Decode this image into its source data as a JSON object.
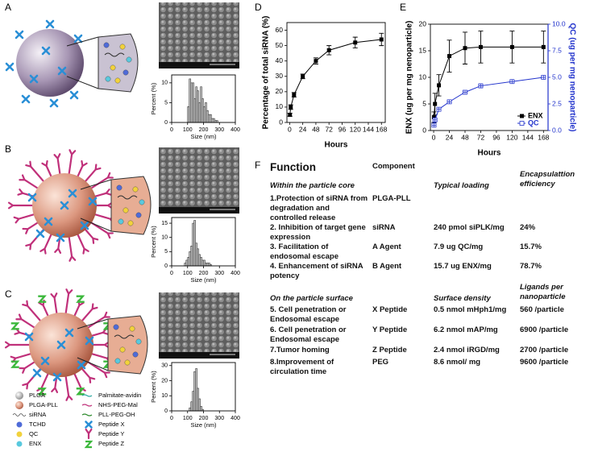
{
  "panel_labels": [
    "A",
    "B",
    "C",
    "D",
    "E",
    "F"
  ],
  "chart_data": [
    {
      "type": "histogram",
      "xlabel": "Size (nm)",
      "ylabel": "Percent (%)",
      "color": "#cccccc",
      "bins": [
        100,
        110,
        120,
        130,
        140,
        150,
        160,
        170,
        180,
        190,
        200,
        210,
        220,
        230,
        240,
        250,
        260,
        270,
        280,
        290
      ],
      "values": [
        4,
        11,
        10,
        10,
        6,
        9,
        8,
        5,
        9,
        6,
        4,
        5,
        3,
        2,
        2,
        1,
        1,
        0.5,
        0.5
      ],
      "xlim": [
        0,
        400
      ],
      "xticks": [
        0,
        100,
        200,
        300,
        400
      ],
      "ylim": [
        0,
        12
      ],
      "yticks": [
        0,
        5,
        10
      ]
    },
    {
      "type": "histogram",
      "xlabel": "Size (nm)",
      "ylabel": "Percent (%)",
      "color": "#cccccc",
      "bins": [
        80,
        90,
        100,
        110,
        120,
        130,
        140,
        150,
        160,
        170,
        180,
        190,
        200,
        210,
        220,
        230,
        240,
        250
      ],
      "values": [
        1,
        2,
        3,
        5,
        7,
        15,
        16,
        8,
        6,
        4,
        3,
        2,
        2,
        1,
        1,
        1,
        0.5
      ],
      "xlim": [
        0,
        400
      ],
      "xticks": [
        0,
        100,
        200,
        300,
        400
      ],
      "ylim": [
        0,
        17
      ],
      "yticks": [
        0,
        5,
        10,
        15
      ]
    },
    {
      "type": "histogram",
      "xlabel": "Size (nm)",
      "ylabel": "Percent (%)",
      "color": "#cccccc",
      "bins": [
        110,
        120,
        130,
        140,
        150,
        160,
        170,
        180,
        190,
        200
      ],
      "values": [
        2,
        6,
        13,
        26,
        28,
        15,
        8,
        3,
        1
      ],
      "xlim": [
        0,
        400
      ],
      "xticks": [
        0,
        100,
        200,
        300,
        400
      ],
      "ylim": [
        0,
        32
      ],
      "yticks": [
        0,
        10,
        20,
        30
      ]
    },
    {
      "type": "line",
      "xlabel": "Hours",
      "ylabel": "Percentage of total siRNA (%)",
      "color": "#000000",
      "x": [
        0.5,
        2,
        8,
        24,
        48,
        72,
        120,
        168
      ],
      "values": [
        5,
        10,
        18,
        30,
        40,
        47,
        52,
        54
      ],
      "errors": [
        1,
        1.5,
        1.5,
        1.5,
        2,
        3,
        3.5,
        4
      ],
      "xlim": [
        -5,
        175
      ],
      "xticks": [
        0,
        24,
        48,
        72,
        96,
        120,
        144,
        168
      ],
      "ylim": [
        0,
        65
      ],
      "yticks": [
        0,
        10,
        20,
        30,
        40,
        50,
        60
      ]
    },
    {
      "type": "line",
      "xlabel": "Hours",
      "ylabel": "ENX (ug per mg nenoparticle)",
      "y2label": "QC (ug per mg nenoparticle)",
      "x": [
        0.5,
        2,
        8,
        24,
        48,
        72,
        120,
        168
      ],
      "series": [
        {
          "name": "ENX",
          "color": "#000000",
          "values": [
            2.5,
            5,
            8.5,
            14,
            15.5,
            15.7,
            15.7,
            15.7
          ],
          "errors": [
            1,
            2,
            2,
            3,
            3,
            3,
            3,
            3
          ]
        },
        {
          "name": "QC",
          "color": "#2233cc",
          "axis": "y2",
          "values": [
            0.5,
            1,
            2,
            2.7,
            3.6,
            4.2,
            4.6,
            5.0
          ],
          "errors": [
            0.1,
            0.1,
            0.1,
            0.1,
            0.1,
            0.1,
            0.1,
            0.1
          ]
        }
      ],
      "xlim": [
        -5,
        175
      ],
      "xticks": [
        0,
        24,
        48,
        72,
        96,
        120,
        144,
        168
      ],
      "ylim": [
        0,
        20
      ],
      "yticks": [
        0,
        5,
        10,
        15,
        20
      ],
      "y2lim": [
        0,
        10
      ],
      "y2ticks": [
        {
          "value": 0,
          "label": "0.0"
        },
        {
          "value": 2.5,
          "label": "2.5"
        },
        {
          "value": 5,
          "label": "5.0"
        },
        {
          "value": 7.5,
          "label": "7.5"
        },
        {
          "value": 10,
          "label": "10.0"
        }
      ],
      "legend": "lower right"
    }
  ],
  "legend": {
    "items": [
      "PLGA",
      "PLGA-PLL",
      "siRNA",
      "TCHD",
      "QC",
      "ENX",
      "Palmitate-avidin",
      "NHS-PEG-Mal",
      "PLL-PEG-OH",
      "Peptide X",
      "Peptide Y",
      "Peptide Z"
    ]
  },
  "table": {
    "header": [
      "Function",
      "Component"
    ],
    "sections": [
      {
        "title": "Within the particle core",
        "columns": [
          "Typical loading",
          "Encapsulattion efficiency"
        ],
        "rows": [
          [
            "1.Protection of siRNA from degradation and controlled release",
            "PLGA-PLL"
          ],
          [
            "2. Inhibition of target gene expression",
            "siRNA",
            "240 pmol siPLK/mg",
            "24%"
          ],
          [
            "3. Facilitation of endosomal escape",
            "A Agent",
            "7.9 ug QC/mg",
            "15.7%"
          ],
          [
            "4. Enhancement of siRNA potency",
            "B Agent",
            "15.7 ug ENX/mg",
            "78.7%"
          ]
        ]
      },
      {
        "title": "On the particle surface",
        "columns": [
          "Surface density",
          "Ligands per nanoparticle"
        ],
        "rows": [
          [
            "5. Cell penetration or Endosomal escape",
            "X Peptide",
            "0.5 nmol mHph1/mg",
            "560 /particle"
          ],
          [
            "6. Cell penetration or Endosomal escape",
            "Y Peptide",
            "6.2 nmol mAP/mg",
            "6900 /particle"
          ],
          [
            "7.Tumor homing",
            "Z Peptide",
            "2.4 nmol iRGD/mg",
            "2700 /particle"
          ],
          [
            "8.Improvement of circulation time",
            "PEG",
            "8.6 nmol/ mg",
            "9600 /particle"
          ]
        ]
      }
    ]
  }
}
